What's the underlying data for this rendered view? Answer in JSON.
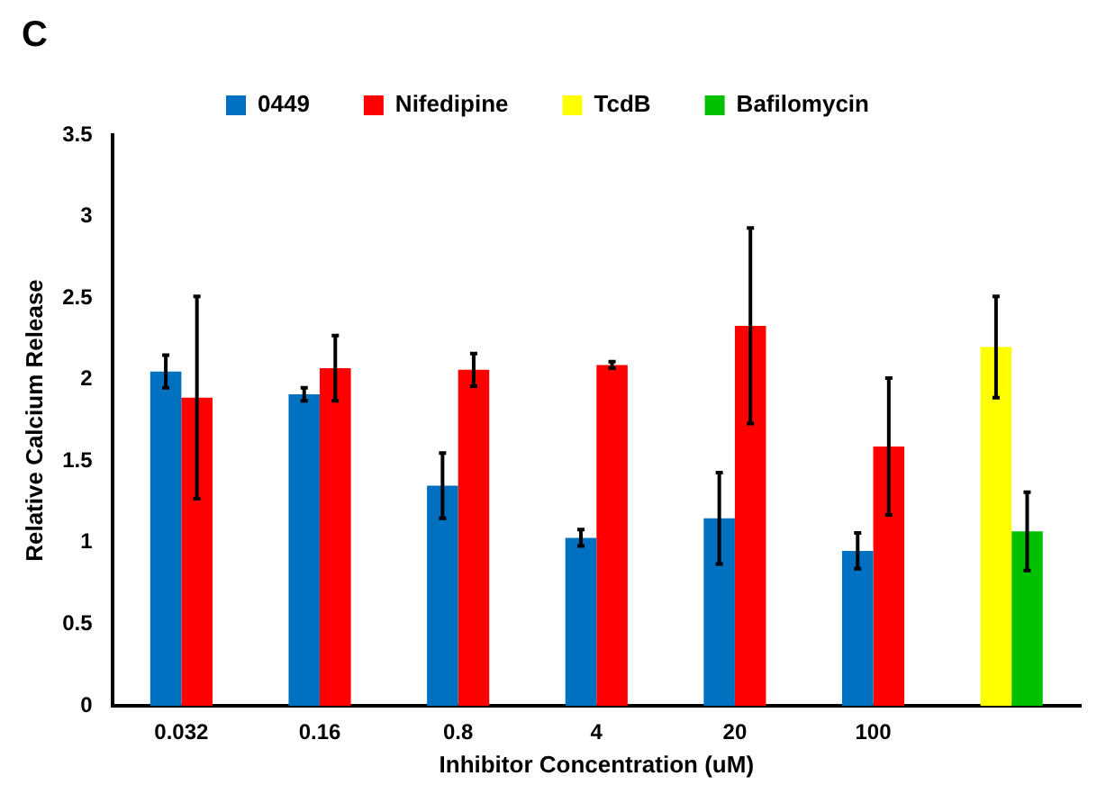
{
  "chart_data": {
    "type": "bar",
    "categories": [
      "0.032",
      "0.16",
      "0.8",
      "4",
      "20",
      "100",
      null
    ],
    "series": [
      {
        "name": "0449",
        "color": "#0070c0",
        "values": [
          2.05,
          1.91,
          1.35,
          1.03,
          1.15,
          0.95,
          null
        ],
        "errors": [
          0.1,
          0.04,
          0.2,
          0.05,
          0.28,
          0.11,
          null
        ]
      },
      {
        "name": "Nifedipine",
        "color": "#ff0000",
        "values": [
          1.89,
          2.07,
          2.06,
          2.09,
          2.33,
          1.59,
          null
        ],
        "errors": [
          0.62,
          0.2,
          0.1,
          0.02,
          0.6,
          0.42,
          null
        ]
      },
      {
        "name": "TcdB",
        "color": "#ffff00",
        "values": [
          null,
          null,
          null,
          null,
          null,
          null,
          2.2
        ],
        "errors": [
          null,
          null,
          null,
          null,
          null,
          null,
          0.31
        ]
      },
      {
        "name": "Bafilomycin",
        "color": "#00c000",
        "values": [
          null,
          null,
          null,
          null,
          null,
          null,
          1.07
        ],
        "errors": [
          null,
          null,
          null,
          null,
          null,
          null,
          0.24
        ]
      }
    ],
    "xlabel": "Inhibitor Concentration (uM)",
    "ylabel": "Relative Calcium Release",
    "ylim": [
      0,
      3.5
    ],
    "yticks": [
      0,
      0.5,
      1,
      1.5,
      2,
      2.5,
      3,
      3.5
    ],
    "grid": false,
    "legend": "top",
    "annotations": [
      "C"
    ]
  }
}
